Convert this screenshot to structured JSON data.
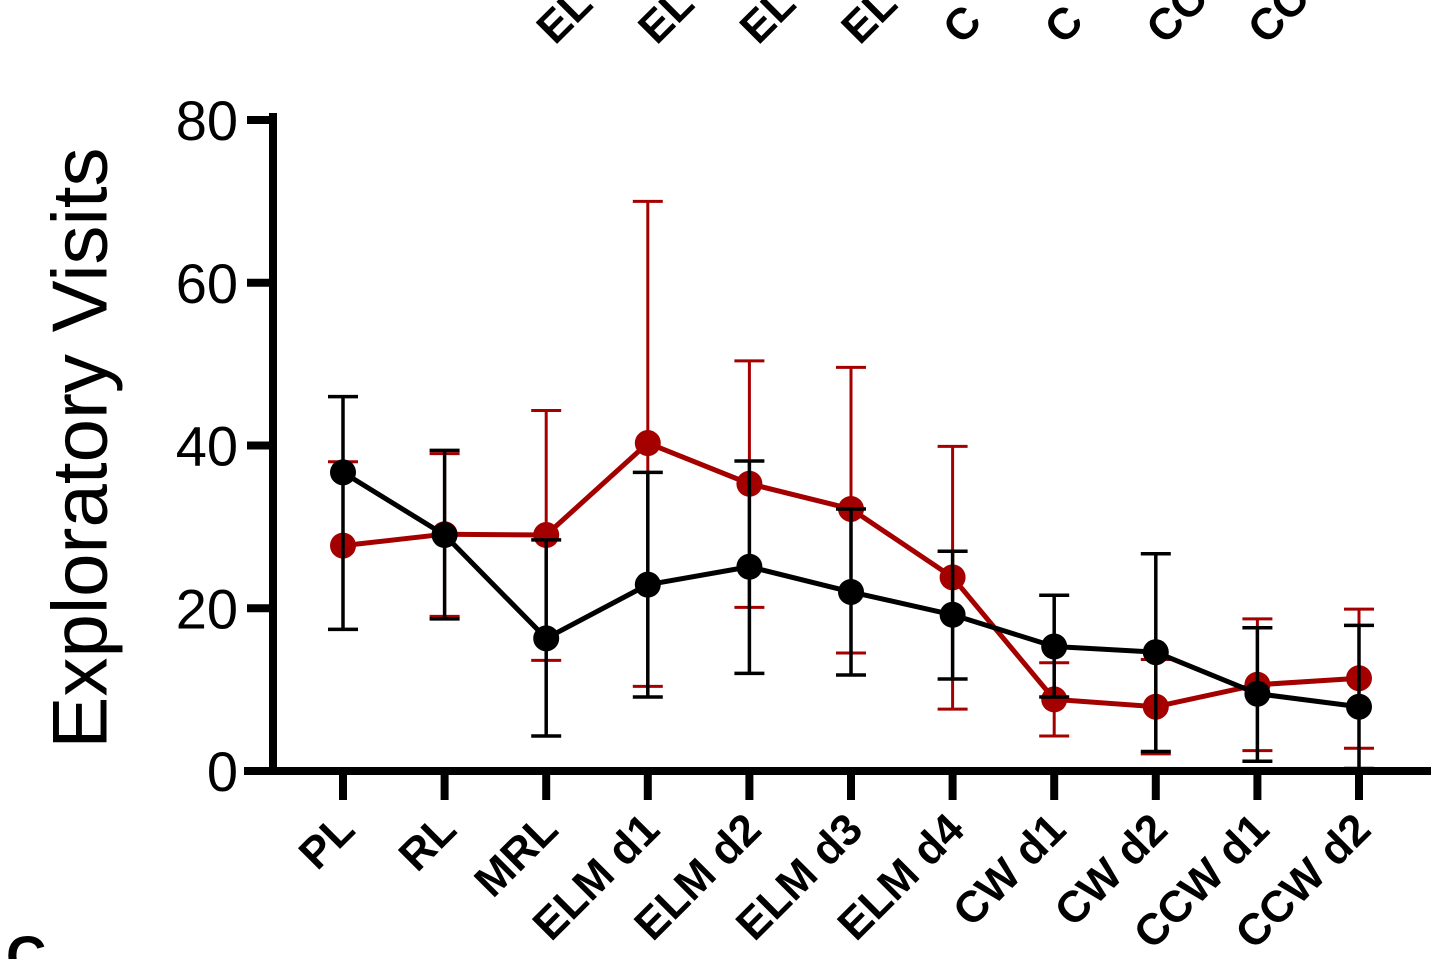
{
  "chart_data": {
    "type": "line",
    "title": "",
    "xlabel": "",
    "ylabel": "Exploratory Visits",
    "ylim": [
      0,
      80
    ],
    "yticks": [
      0,
      20,
      40,
      60,
      80
    ],
    "categories": [
      "PL",
      "RL",
      "MRL",
      "ELM d1",
      "ELM d2",
      "ELM d3",
      "ELM d4",
      "CW d1",
      "CW d2",
      "CCW d1",
      "CCW d2"
    ],
    "top_cropped_labels": [
      "EL",
      "EL",
      "EL",
      "EL",
      "C",
      "C",
      "CC",
      "CC"
    ],
    "panel_letter": "C",
    "grid": false,
    "legend": "none",
    "series": [
      {
        "color": "#a50000",
        "values": [
          27.7,
          29.1,
          29.0,
          40.3,
          35.3,
          32.2,
          23.8,
          8.8,
          7.9,
          10.6,
          11.4
        ],
        "err_low": [
          17.4,
          19.0,
          13.6,
          10.4,
          20.1,
          14.5,
          7.6,
          4.3,
          2.1,
          2.5,
          2.8
        ],
        "err_high": [
          38.0,
          39.0,
          44.3,
          70.0,
          50.4,
          49.6,
          39.9,
          13.3,
          13.7,
          18.7,
          19.9
        ]
      },
      {
        "color": "#000000",
        "values": [
          36.7,
          29.0,
          16.3,
          22.9,
          25.1,
          22.0,
          19.2,
          15.3,
          14.6,
          9.5,
          7.9
        ],
        "err_low": [
          17.4,
          18.7,
          4.3,
          9.1,
          12.0,
          11.8,
          11.3,
          9.1,
          2.4,
          1.2,
          0.3
        ],
        "err_high": [
          46.0,
          39.4,
          28.4,
          36.7,
          38.1,
          32.2,
          27.0,
          21.6,
          26.7,
          17.6,
          17.9
        ]
      }
    ]
  }
}
